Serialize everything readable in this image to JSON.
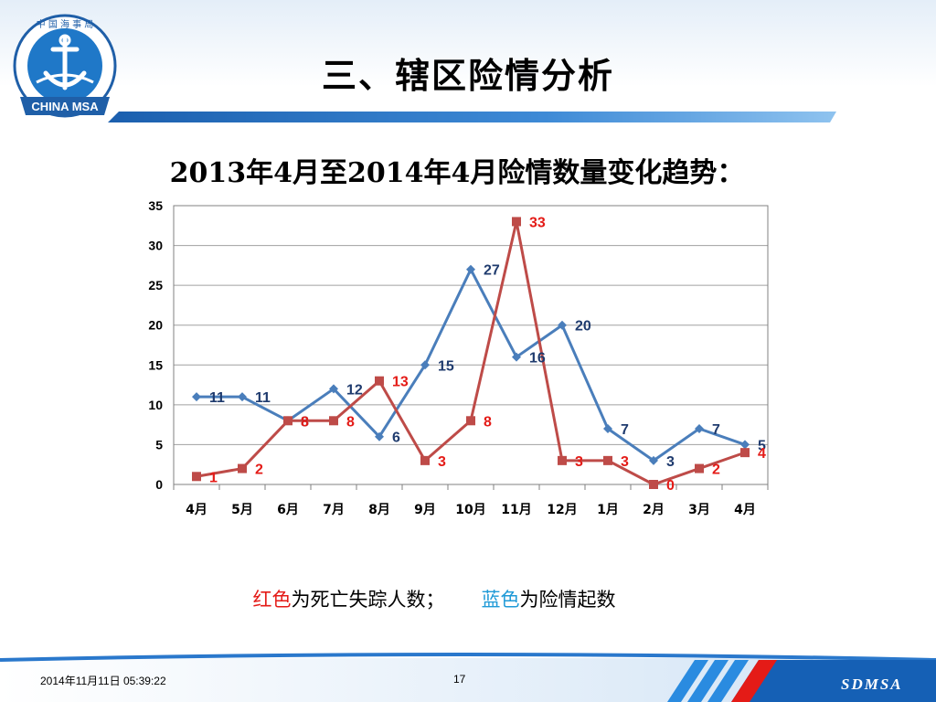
{
  "slide": {
    "title": "三、辖区险情分析",
    "chart_heading": "2013年4月至2014年4月险情数量变化趋势：",
    "logo": {
      "ring_text": "中 国 海 事 局",
      "banner_text": "CHINA MSA"
    },
    "legend_note": {
      "red_word": "红色",
      "red_desc": "为死亡失踪人数；",
      "blue_word": "蓝色",
      "blue_desc": "为险情起数"
    },
    "footer": {
      "datetime": "2014年11月11日  05:39:22",
      "page": "17",
      "brand": "SDMSA"
    }
  },
  "colors": {
    "blue_series": "#4a7ebb",
    "red_series": "#be4b48",
    "blue_label": "#1f3b6e",
    "red_label": "#e41b17",
    "header_bar": "#3e8ad6",
    "footer_blue": "#1560b5"
  },
  "chart_data": {
    "type": "line",
    "title": "2013年4月至2014年4月险情数量变化趋势：",
    "categories": [
      "4月",
      "5月",
      "6月",
      "7月",
      "8月",
      "9月",
      "10月",
      "11月",
      "12月",
      "1月",
      "2月",
      "3月",
      "4月"
    ],
    "ylim": [
      0,
      35
    ],
    "yticks": [
      0,
      5,
      10,
      15,
      20,
      25,
      30,
      35
    ],
    "grid": true,
    "series": [
      {
        "key": "blue",
        "values": [
          11,
          11,
          8,
          12,
          6,
          15,
          27,
          16,
          20,
          7,
          3,
          7,
          5
        ],
        "marker": "diamond"
      },
      {
        "key": "red",
        "values": [
          1,
          2,
          8,
          8,
          13,
          3,
          8,
          33,
          3,
          3,
          0,
          2,
          4
        ],
        "marker": "square"
      }
    ]
  }
}
